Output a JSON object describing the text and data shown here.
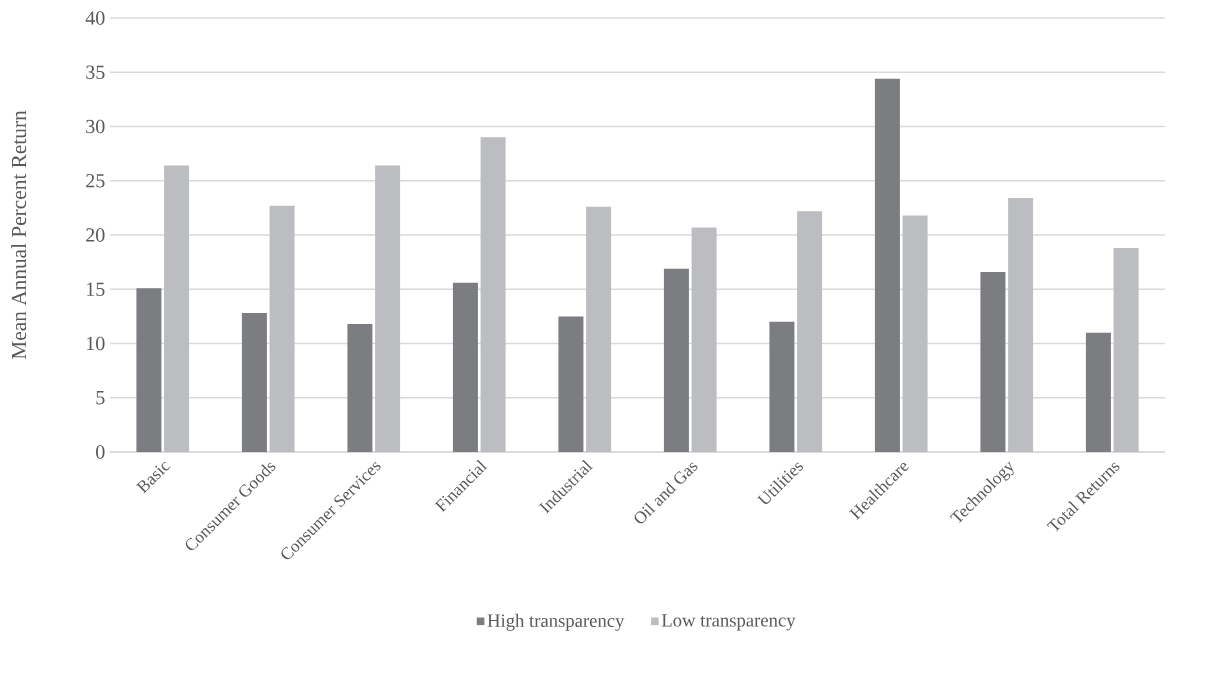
{
  "chart_data": {
    "type": "bar",
    "ylabel": "Mean Annual Percent Return",
    "categories": [
      "Basic",
      "Consumer Goods",
      "Consumer Services",
      "Financial",
      "Industrial",
      "Oil and Gas",
      "Utilities",
      "Healthcare",
      "Technology",
      "Total Returns"
    ],
    "series": [
      {
        "name": "High transparency",
        "color": "#7c7d81",
        "values": [
          15.1,
          12.8,
          11.8,
          15.6,
          12.5,
          16.9,
          12.0,
          34.4,
          16.6,
          11.0
        ]
      },
      {
        "name": "Low transparency",
        "color": "#bcbdc0",
        "values": [
          26.4,
          22.7,
          26.4,
          29.0,
          22.6,
          20.7,
          22.2,
          21.8,
          23.4,
          18.8
        ]
      }
    ],
    "ylim": [
      0,
      40
    ],
    "yticks": [
      0,
      5,
      10,
      15,
      20,
      25,
      30,
      35,
      40
    ],
    "grid": "y",
    "legend": "bottom"
  }
}
